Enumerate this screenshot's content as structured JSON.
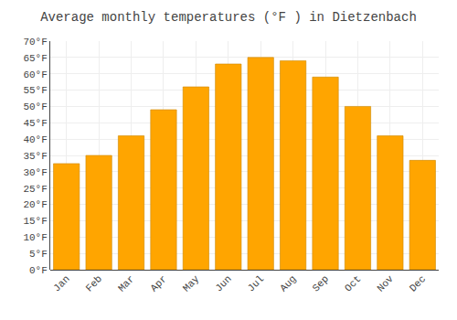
{
  "chart_data": {
    "type": "bar",
    "title": "Average monthly temperatures (°F ) in Dietzenbach",
    "categories": [
      "Jan",
      "Feb",
      "Mar",
      "Apr",
      "May",
      "Jun",
      "Jul",
      "Aug",
      "Sep",
      "Oct",
      "Nov",
      "Dec"
    ],
    "values": [
      32.5,
      35,
      41,
      49,
      56,
      63,
      65,
      64,
      59,
      50,
      41,
      33.5
    ],
    "color": "#FFA500",
    "ylim": [
      0,
      70
    ],
    "yticks": [
      {
        "value": 0,
        "label": "0°F"
      },
      {
        "value": 5,
        "label": "5°F"
      },
      {
        "value": 10,
        "label": "10°F"
      },
      {
        "value": 15,
        "label": "15°F"
      },
      {
        "value": 20,
        "label": "20°F"
      },
      {
        "value": 25,
        "label": "25°F"
      },
      {
        "value": 30,
        "label": "30°F"
      },
      {
        "value": 35,
        "label": "35°F"
      },
      {
        "value": 40,
        "label": "40°F"
      },
      {
        "value": 45,
        "label": "45°F"
      },
      {
        "value": 50,
        "label": "50°F"
      },
      {
        "value": 55,
        "label": "55°F"
      },
      {
        "value": 60,
        "label": "60°F"
      },
      {
        "value": 65,
        "label": "65°F"
      },
      {
        "value": 70,
        "label": "70°F"
      }
    ],
    "grid": true
  }
}
